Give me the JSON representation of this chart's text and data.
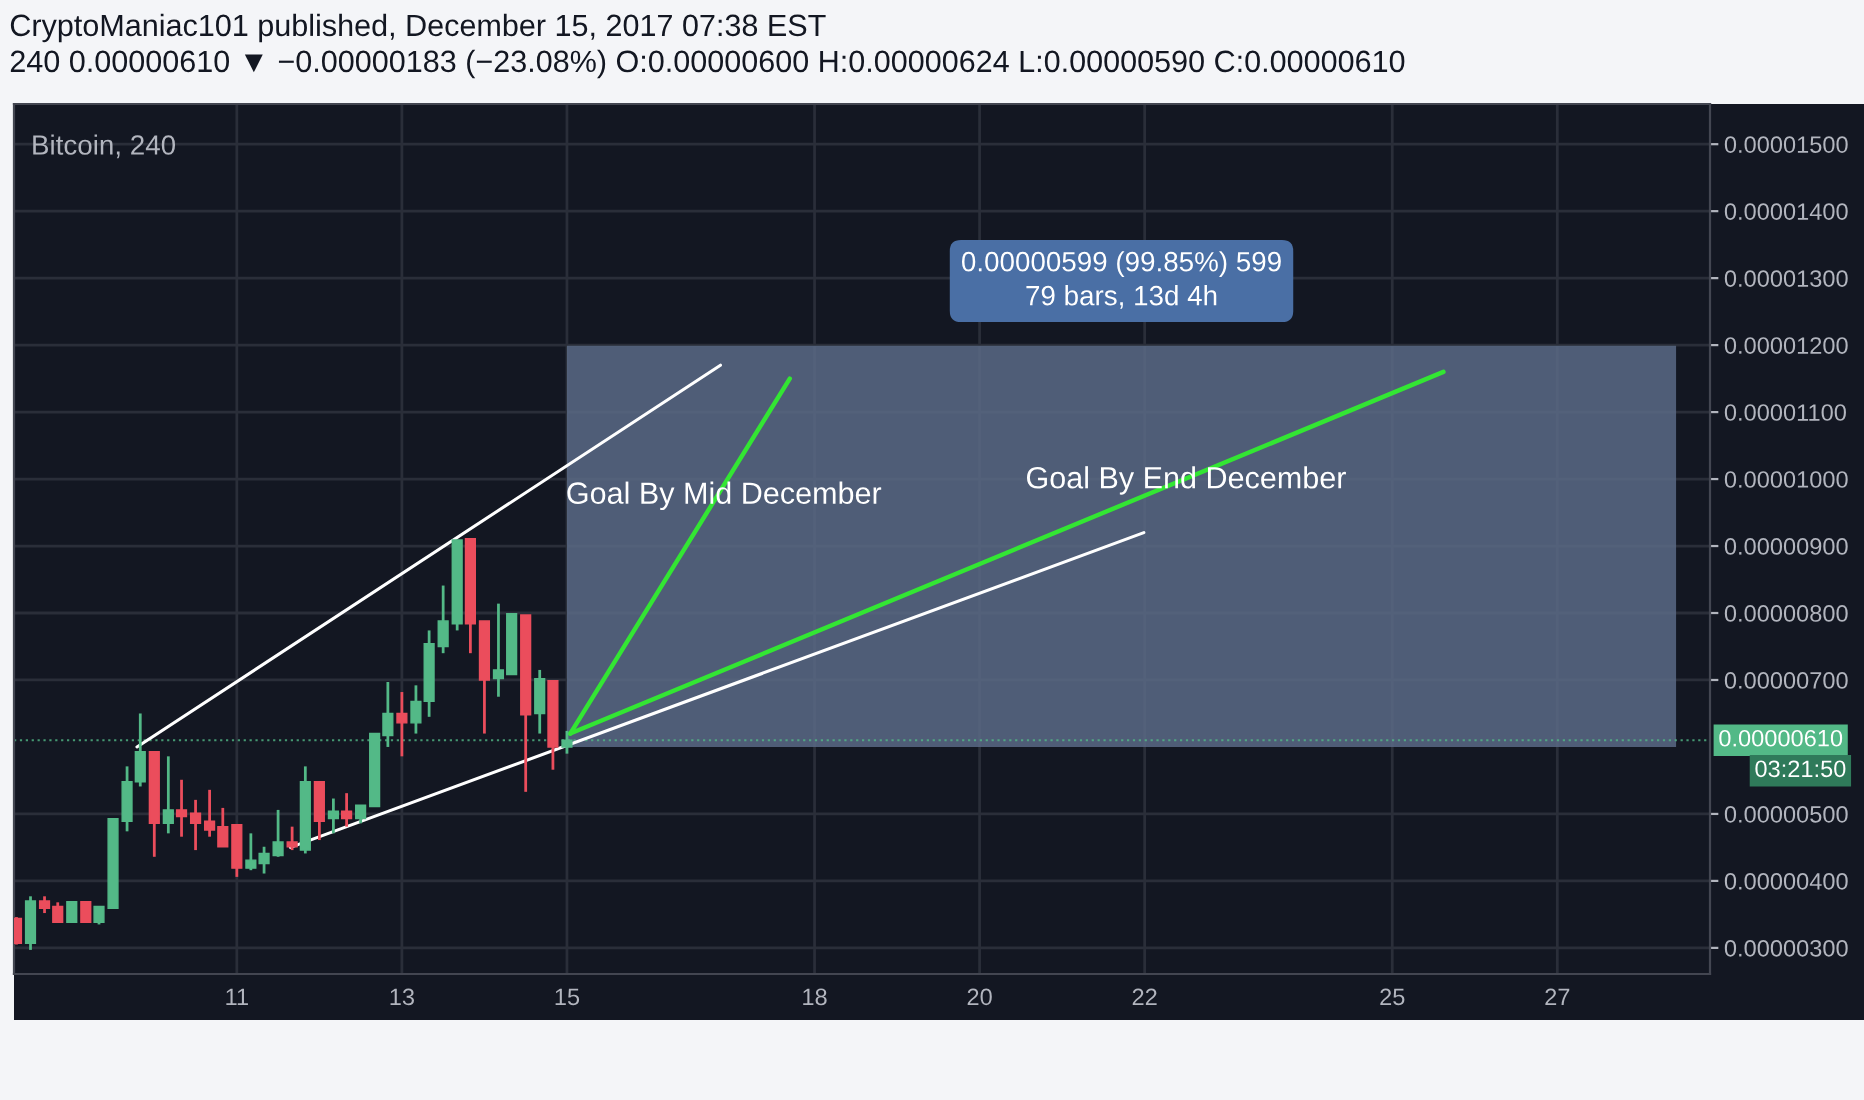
{
  "chart_data": {
    "type": "candlestick",
    "title": "CryptoManiac101 published, December 15, 2017 07:38 EST",
    "subtitle": "240 0.00000610 ▼ −0.00000183 (−23.08%) O:0.00000600 H:0.00000624 L:0.00000590 C:0.00000610",
    "x": [
      8.33,
      8.5,
      8.67,
      8.83,
      9,
      9.17,
      9.33,
      9.5,
      9.67,
      9.83,
      10,
      10.17,
      10.33,
      10.5,
      10.67,
      10.83,
      11,
      11.17,
      11.33,
      11.5,
      11.67,
      11.83,
      12,
      12.17,
      12.33,
      12.5,
      12.67,
      12.83,
      13,
      13.17,
      13.33,
      13.5,
      13.67,
      13.83,
      14,
      14.17,
      14.33,
      14.5,
      14.67,
      14.83,
      15
    ],
    "ohlc": [
      [
        3.44e-06,
        3.46e-06,
        3.05e-06,
        3.07e-06
      ],
      [
        3.07e-06,
        3.77e-06,
        2.97e-06,
        3.7e-06
      ],
      [
        3.7e-06,
        3.77e-06,
        3.52e-06,
        3.59e-06
      ],
      [
        3.62e-06,
        3.68e-06,
        3.38e-06,
        3.38e-06
      ],
      [
        3.38e-06,
        3.69e-06,
        3.38e-06,
        3.69e-06
      ],
      [
        3.69e-06,
        3.69e-06,
        3.38e-06,
        3.38e-06
      ],
      [
        3.38e-06,
        3.62e-06,
        3.35e-06,
        3.62e-06
      ],
      [
        3.59e-06,
        4.93e-06,
        3.59e-06,
        4.93e-06
      ],
      [
        4.89e-06,
        5.71e-06,
        4.74e-06,
        5.48e-06
      ],
      [
        5.48e-06,
        6.5e-06,
        5.41e-06,
        5.93e-06
      ],
      [
        5.93e-06,
        5.93e-06,
        4.36e-06,
        4.86e-06
      ],
      [
        4.86e-06,
        5.86e-06,
        4.71e-06,
        5.06e-06
      ],
      [
        5.06e-06,
        5.51e-06,
        4.66e-06,
        4.96e-06
      ],
      [
        5.01e-06,
        5.21e-06,
        4.46e-06,
        4.86e-06
      ],
      [
        4.89e-06,
        5.36e-06,
        4.66e-06,
        4.76e-06
      ],
      [
        4.81e-06,
        5.09e-06,
        4.51e-06,
        4.51e-06
      ],
      [
        4.84e-06,
        4.84e-06,
        4.06e-06,
        4.19e-06
      ],
      [
        4.19e-06,
        4.71e-06,
        4.16e-06,
        4.31e-06
      ],
      [
        4.26e-06,
        4.51e-06,
        4.11e-06,
        4.41e-06
      ],
      [
        4.38e-06,
        5.06e-06,
        4.36e-06,
        4.58e-06
      ],
      [
        4.58e-06,
        4.81e-06,
        4.46e-06,
        4.51e-06
      ],
      [
        4.46e-06,
        5.71e-06,
        4.41e-06,
        5.48e-06
      ],
      [
        5.48e-06,
        5.48e-06,
        4.61e-06,
        4.89e-06
      ],
      [
        4.93e-06,
        5.23e-06,
        4.71e-06,
        5.04e-06
      ],
      [
        5.04e-06,
        5.31e-06,
        4.81e-06,
        4.93e-06
      ],
      [
        4.93e-06,
        5.13e-06,
        4.86e-06,
        5.13e-06
      ],
      [
        5.11e-06,
        6.2e-06,
        5.11e-06,
        6.2e-06
      ],
      [
        6.17e-06,
        6.97e-06,
        6e-06,
        6.5e-06
      ],
      [
        6.5e-06,
        6.82e-06,
        5.86e-06,
        6.36e-06
      ],
      [
        6.36e-06,
        6.92e-06,
        6.2e-06,
        6.68e-06
      ],
      [
        6.68e-06,
        7.74e-06,
        6.45e-06,
        7.54e-06
      ],
      [
        7.5e-06,
        8.41e-06,
        7.4e-06,
        7.88e-06
      ],
      [
        7.84e-06,
        9.09e-06,
        7.74e-06,
        9.09e-06
      ],
      [
        9.11e-06,
        9.11e-06,
        7.4e-06,
        7.84e-06
      ],
      [
        7.88e-06,
        7.88e-06,
        6.2e-06,
        7e-06
      ],
      [
        7.02e-06,
        8.14e-06,
        6.75e-06,
        7.15e-06
      ],
      [
        7.08e-06,
        7.99e-06,
        7.08e-06,
        7.99e-06
      ],
      [
        7.97e-06,
        7.97e-06,
        5.33e-06,
        6.48e-06
      ],
      [
        6.5e-06,
        7.15e-06,
        6.2e-06,
        7.02e-06
      ],
      [
        6.99e-06,
        6.99e-06,
        5.66e-06,
        6e-06
      ],
      [
        6e-06,
        6.24e-06,
        5.9e-06,
        6.1e-06
      ]
    ],
    "colors": [
      "#eb4d5c",
      "#53b987",
      "#eb4d5c",
      "#eb4d5c",
      "#53b987",
      "#eb4d5c",
      "#53b987",
      "#53b987",
      "#53b987",
      "#53b987",
      "#eb4d5c",
      "#53b987",
      "#eb4d5c",
      "#eb4d5c",
      "#eb4d5c",
      "#eb4d5c",
      "#eb4d5c",
      "#53b987",
      "#53b987",
      "#53b987",
      "#eb4d5c",
      "#53b987",
      "#eb4d5c",
      "#53b987",
      "#eb4d5c",
      "#53b987",
      "#53b987",
      "#53b987",
      "#eb4d5c",
      "#53b987",
      "#53b987",
      "#53b987",
      "#53b987",
      "#eb4d5c",
      "#eb4d5c",
      "#53b987",
      "#53b987",
      "#eb4d5c",
      "#53b987",
      "#eb4d5c",
      "#53b987"
    ],
    "series": [
      {
        "type": "line",
        "color": "#ffffff",
        "x": [
          9.79,
          16.86
        ],
        "values": [
          6e-06,
          1.17e-05
        ]
      },
      {
        "type": "line",
        "color": "#ffffff",
        "x": [
          11.65,
          21.99
        ],
        "values": [
          4.5e-06,
          9.2e-06
        ]
      },
      {
        "type": "line",
        "color": "#33e633",
        "x": [
          15.04,
          17.7
        ],
        "values": [
          6.2e-06,
          1.15e-05
        ]
      },
      {
        "type": "line",
        "color": "#33e633",
        "x": [
          15.04,
          25.62
        ],
        "values": [
          6.2e-06,
          1.16e-05
        ]
      }
    ],
    "bands": [
      {
        "axis": "y",
        "from": 6e-06,
        "to": 1.199e-05,
        "color": "#5b6a86",
        "label": "0.00000599 (99.85%) 599\n79 bars, 13d 4h"
      }
    ],
    "ref_lines": [
      {
        "axis": "y",
        "value": 6.1e-06,
        "label": "0.00000610",
        "color": "#53b987",
        "line_style": "dotted"
      }
    ],
    "annotations": [
      "Bitcoin, 240",
      "03:21:50",
      {
        "text": "Goal By Mid December",
        "x": 16.9,
        "y": 9.75e-06
      },
      {
        "text": "Goal By End December",
        "x": 22.5,
        "y": 9.98e-06
      }
    ],
    "xlim": [
      8.3,
      28.85
    ],
    "xticks": [
      11,
      13,
      15,
      18,
      20,
      22,
      25,
      27
    ],
    "ylim": [
      2.61e-06,
      1.56e-05
    ],
    "yticks": [
      {
        "value": 3e-06,
        "label": "0.00000300"
      },
      {
        "value": 4e-06,
        "label": "0.00000400"
      },
      {
        "value": 5e-06,
        "label": "0.00000500"
      },
      {
        "value": 7e-06,
        "label": "0.00000700"
      },
      {
        "value": 8e-06,
        "label": "0.00000800"
      },
      {
        "value": 9e-06,
        "label": "0.00000900"
      },
      {
        "value": 1e-05,
        "label": "0.00001000"
      },
      {
        "value": 1.1e-05,
        "label": "0.00001100"
      },
      {
        "value": 1.2e-05,
        "label": "0.00001200"
      },
      {
        "value": 1.3e-05,
        "label": "0.00001300"
      },
      {
        "value": 1.4e-05,
        "label": "0.00001400"
      },
      {
        "value": 1.5e-05,
        "label": "0.00001500"
      }
    ],
    "grid": true,
    "legend": false
  }
}
